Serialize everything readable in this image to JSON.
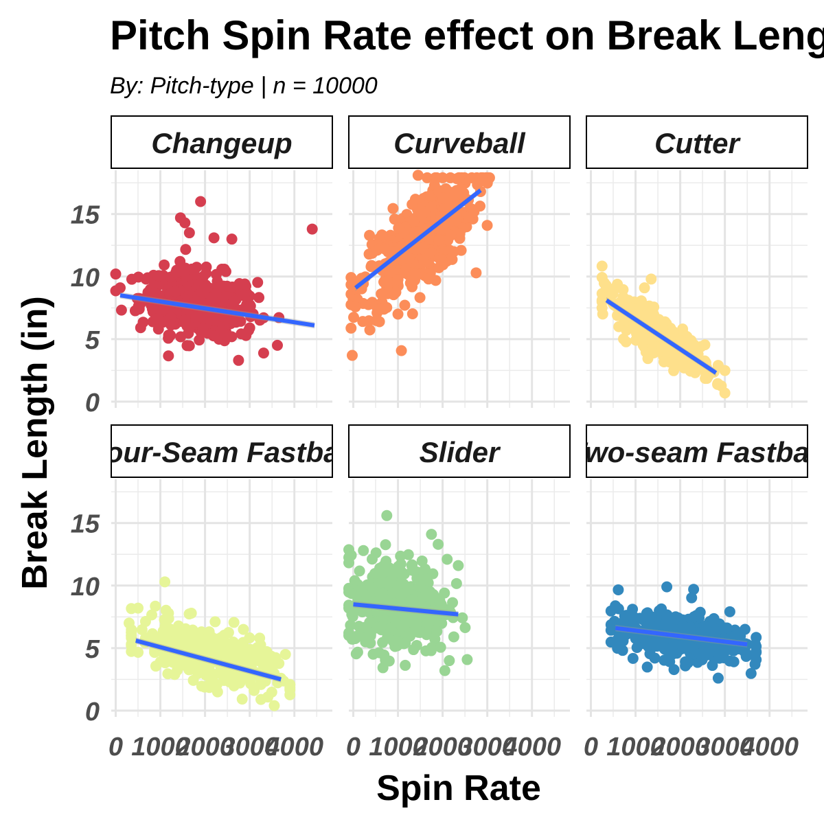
{
  "chart_data": {
    "type": "scatter",
    "title": "Pitch Spin Rate effect on Break Length",
    "subtitle": "By: Pitch-type | n = 10000",
    "xlabel": "Spin Rate",
    "ylabel": "Break Length (in)",
    "xlim": [
      -100,
      4850
    ],
    "ylim": [
      -0.5,
      18.5
    ],
    "x_ticks": [
      0,
      1000,
      2000,
      3000,
      4000
    ],
    "x_tick_labels": [
      "0",
      "1000",
      "2000",
      "3000",
      "4000"
    ],
    "y_ticks": [
      0,
      5,
      10,
      15
    ],
    "y_tick_labels": [
      "0",
      "5",
      "10",
      "15"
    ],
    "grid": true,
    "legend": "none",
    "trend_line_color": "#3366ff",
    "facets": [
      {
        "name": "Changeup",
        "color": "#d53e4f",
        "trend": {
          "x": [
            100,
            4450
          ],
          "y": [
            8.5,
            6.1
          ]
        },
        "cloud": {
          "center": [
            1850,
            7.8
          ],
          "spread": [
            650,
            1.3
          ],
          "slope": -0.0004,
          "count": 420
        },
        "points": [
          [
            100,
            9.1
          ],
          [
            4400,
            13.8
          ],
          [
            1450,
            14.7
          ],
          [
            1900,
            16.0
          ],
          [
            1650,
            13.5
          ],
          [
            1550,
            14.3
          ],
          [
            2600,
            13.0
          ],
          [
            2750,
            3.3
          ],
          [
            3000,
            5.9
          ],
          [
            2200,
            13.1
          ]
        ]
      },
      {
        "name": "Curveball",
        "color": "#fc8d59",
        "trend": {
          "x": [
            50,
            2850
          ],
          "y": [
            9.1,
            16.9
          ]
        },
        "cloud": {
          "center": [
            1450,
            12.8
          ],
          "spread": [
            650,
            1.9
          ],
          "slope": 0.0029,
          "count": 420
        },
        "points": [
          [
            2850,
            16.8
          ],
          [
            2750,
            10.3
          ],
          [
            1000,
            7.0
          ],
          [
            1450,
            18.1
          ],
          [
            2250,
            12.0
          ],
          [
            600,
            7.4
          ],
          [
            2000,
            17.9
          ]
        ]
      },
      {
        "name": "Cutter",
        "color": "#fee08b",
        "trend": {
          "x": [
            350,
            2800
          ],
          "y": [
            8.1,
            2.3
          ]
        },
        "cloud": {
          "center": [
            1550,
            5.3
          ],
          "spread": [
            600,
            0.8
          ],
          "slope": -0.0024,
          "count": 300
        },
        "points": [
          [
            300,
            9.5
          ],
          [
            1350,
            9.8
          ],
          [
            2400,
            3.8
          ],
          [
            2850,
            2.9
          ],
          [
            1200,
            9.1
          ]
        ]
      },
      {
        "name": "Four-Seam Fastball",
        "color": "#e6f598",
        "trend": {
          "x": [
            450,
            3700
          ],
          "y": [
            5.6,
            2.5
          ]
        },
        "cloud": {
          "center": [
            2000,
            4.5
          ],
          "spread": [
            750,
            1.1
          ],
          "slope": -0.001,
          "count": 400
        },
        "points": [
          [
            1100,
            10.3
          ],
          [
            3800,
            4.5
          ],
          [
            3550,
            0.4
          ],
          [
            500,
            8.2
          ],
          [
            300,
            7.0
          ],
          [
            3300,
            3.0
          ]
        ]
      },
      {
        "name": "Slider",
        "color": "#99d594",
        "trend": {
          "x": [
            0,
            2350
          ],
          "y": [
            8.5,
            7.7
          ]
        },
        "cloud": {
          "center": [
            1000,
            8.5
          ],
          "spread": [
            550,
            1.9
          ],
          "slope": -0.0002,
          "count": 400
        },
        "points": [
          [
            750,
            15.6
          ],
          [
            1750,
            14.1
          ],
          [
            2350,
            11.6
          ],
          [
            2150,
            4.0
          ],
          [
            2050,
            3.2
          ],
          [
            1900,
            13.3
          ],
          [
            2250,
            5.9
          ]
        ]
      },
      {
        "name": "Two-seam Fastball",
        "color": "#3288bd",
        "trend": {
          "x": [
            550,
            3500
          ],
          "y": [
            6.6,
            5.3
          ]
        },
        "cloud": {
          "center": [
            2000,
            5.9
          ],
          "spread": [
            700,
            0.9
          ],
          "slope": -0.0004,
          "count": 420
        },
        "points": [
          [
            550,
            7.0
          ],
          [
            1700,
            9.9
          ],
          [
            2300,
            9.7
          ],
          [
            3450,
            6.5
          ],
          [
            2850,
            2.6
          ],
          [
            3500,
            5.3
          ]
        ]
      }
    ]
  }
}
